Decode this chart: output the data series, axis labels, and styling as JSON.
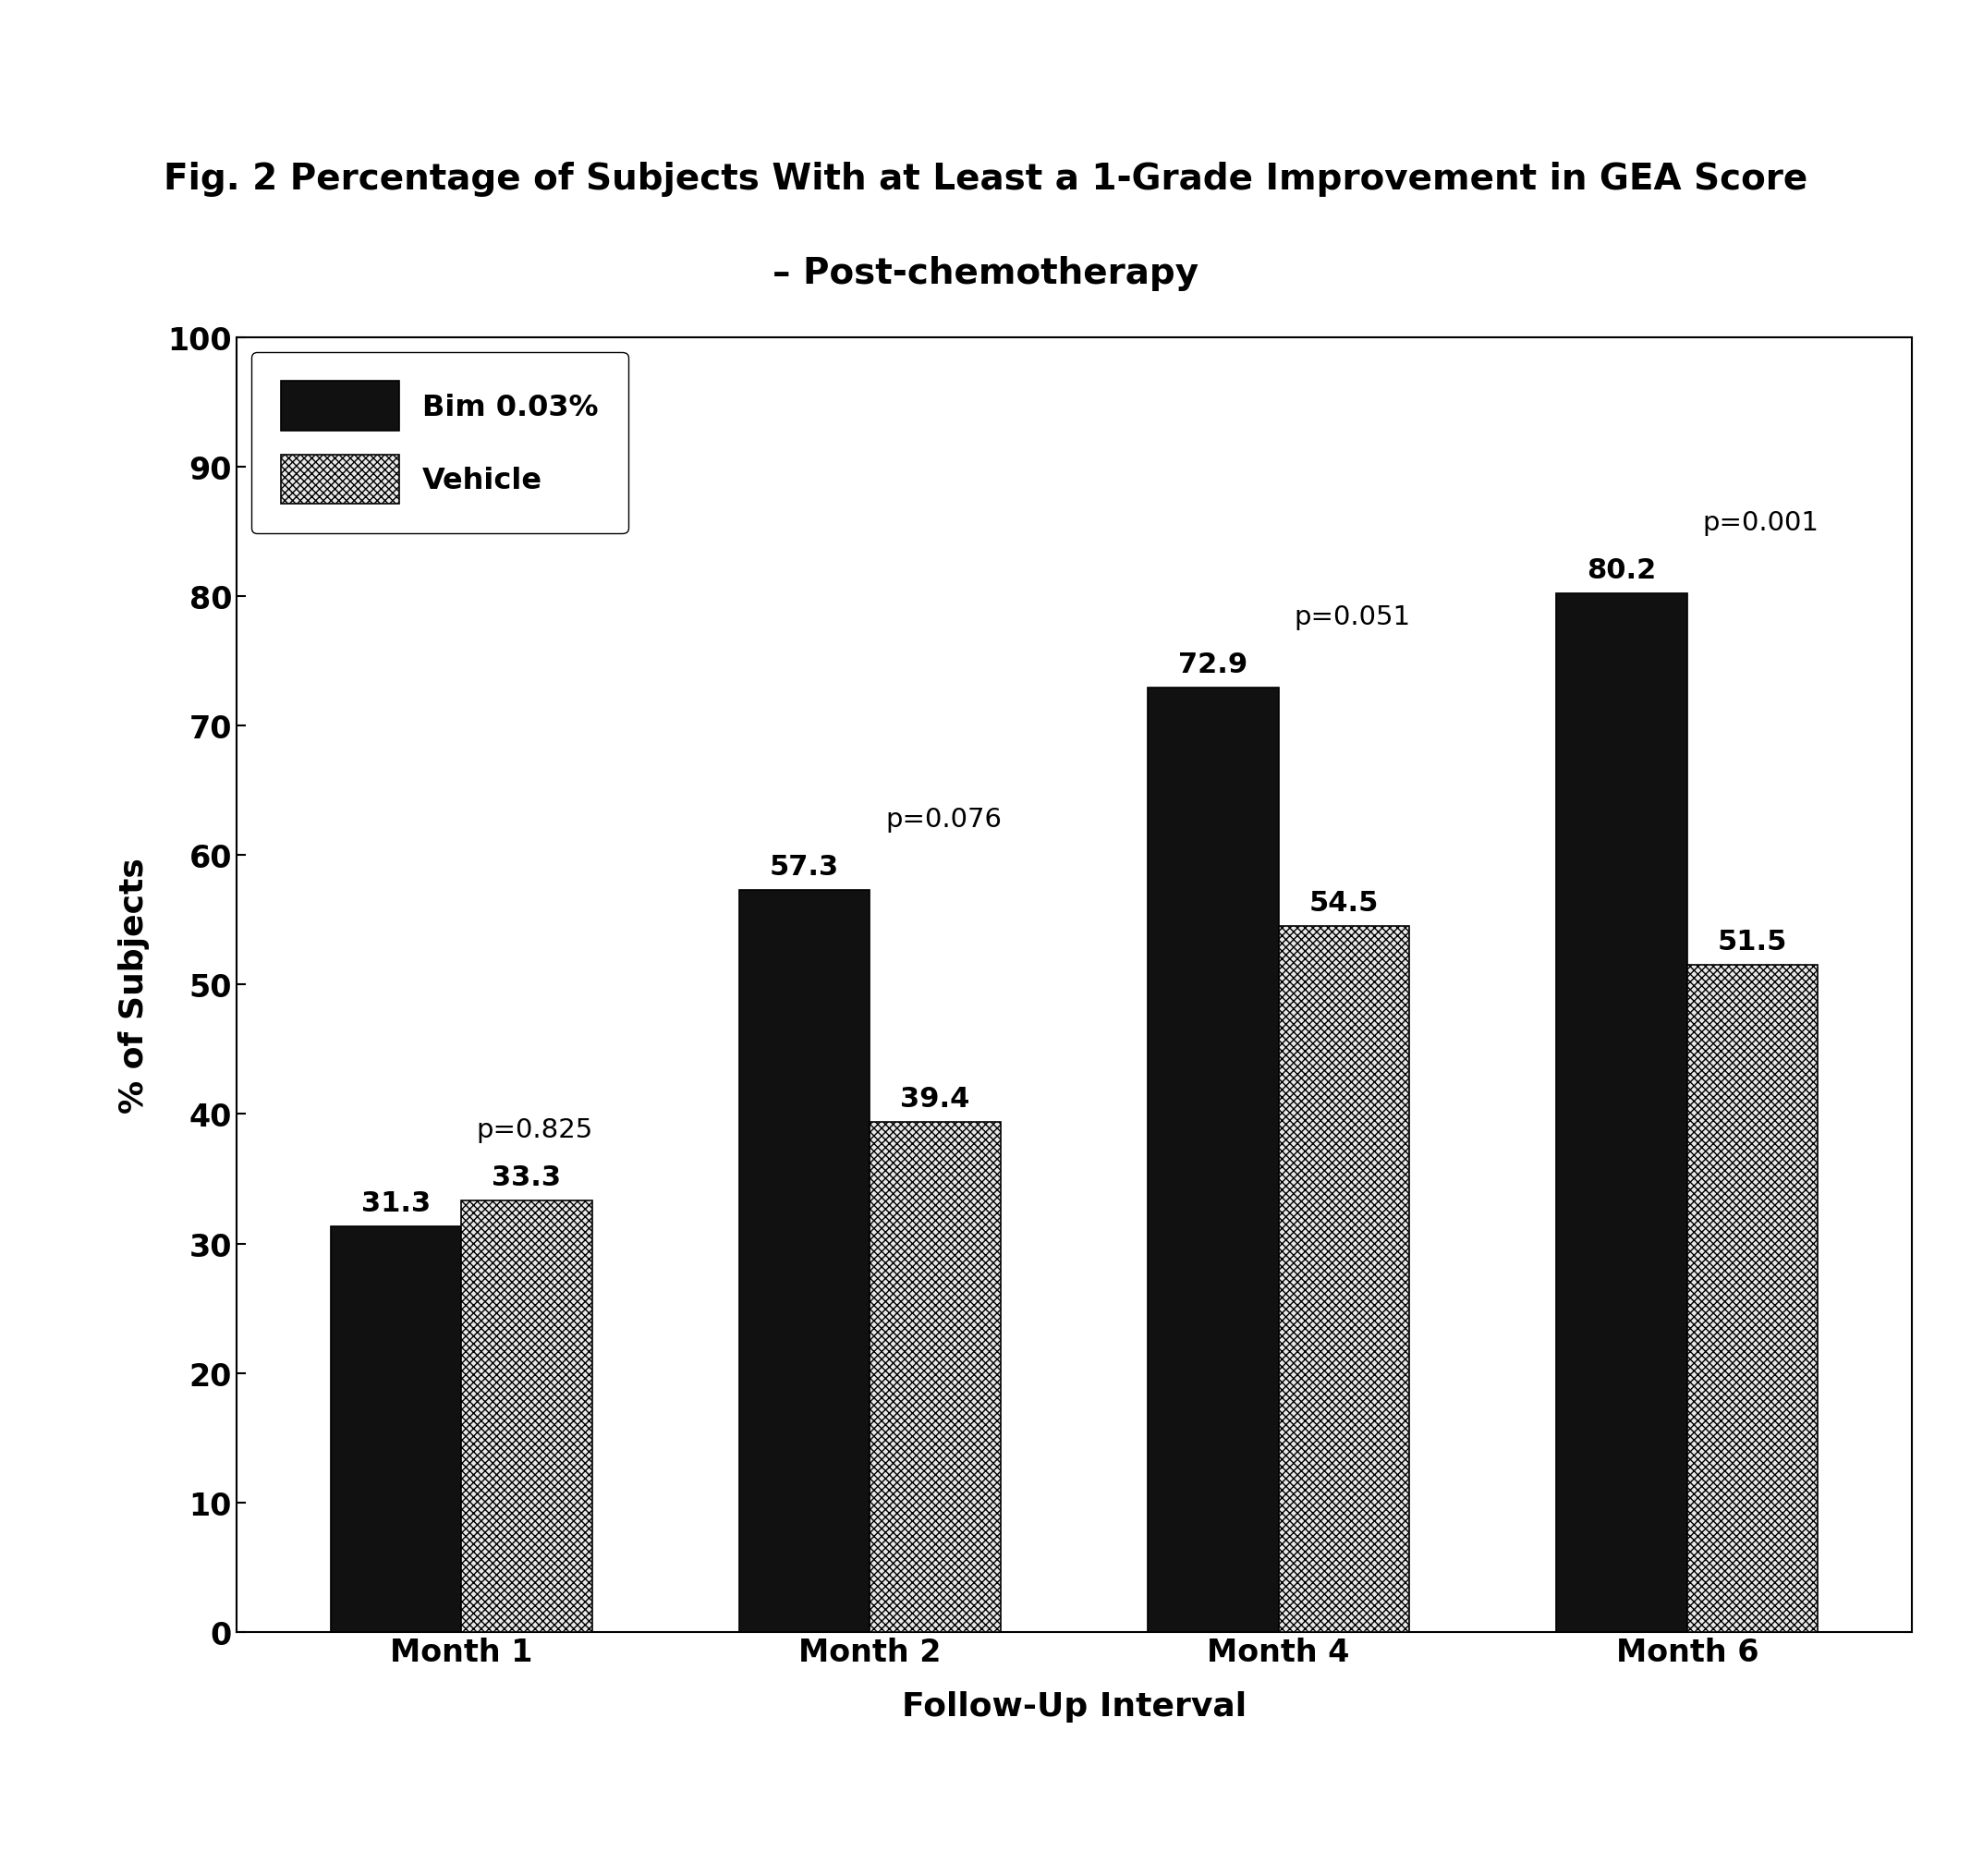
{
  "title_line1": "Fig. 2 Percentage of Subjects With at Least a 1-Grade Improvement in GEA Score",
  "title_line2": "– Post-chemotherapy",
  "categories": [
    "Month 1",
    "Month 2",
    "Month 4",
    "Month 6"
  ],
  "bim_values": [
    31.3,
    57.3,
    72.9,
    80.2
  ],
  "vehicle_values": [
    33.3,
    39.4,
    54.5,
    51.5
  ],
  "p_values": [
    "p=0.825",
    "p=0.076",
    "p=0.051",
    "p=0.001"
  ],
  "ylabel": "% of Subjects",
  "xlabel": "Follow-Up Interval",
  "ylim": [
    0,
    100
  ],
  "yticks": [
    0,
    10,
    20,
    30,
    40,
    50,
    60,
    70,
    80,
    90,
    100
  ],
  "legend_labels": [
    "Bim 0.03%",
    "Vehicle"
  ],
  "bim_color": "#111111",
  "vehicle_color": "#e8e8e8",
  "bar_width": 0.32,
  "title_fontsize": 28,
  "axis_label_fontsize": 26,
  "tick_fontsize": 24,
  "bar_label_fontsize": 22,
  "p_value_fontsize": 21,
  "legend_fontsize": 23,
  "background_color": "#ffffff"
}
